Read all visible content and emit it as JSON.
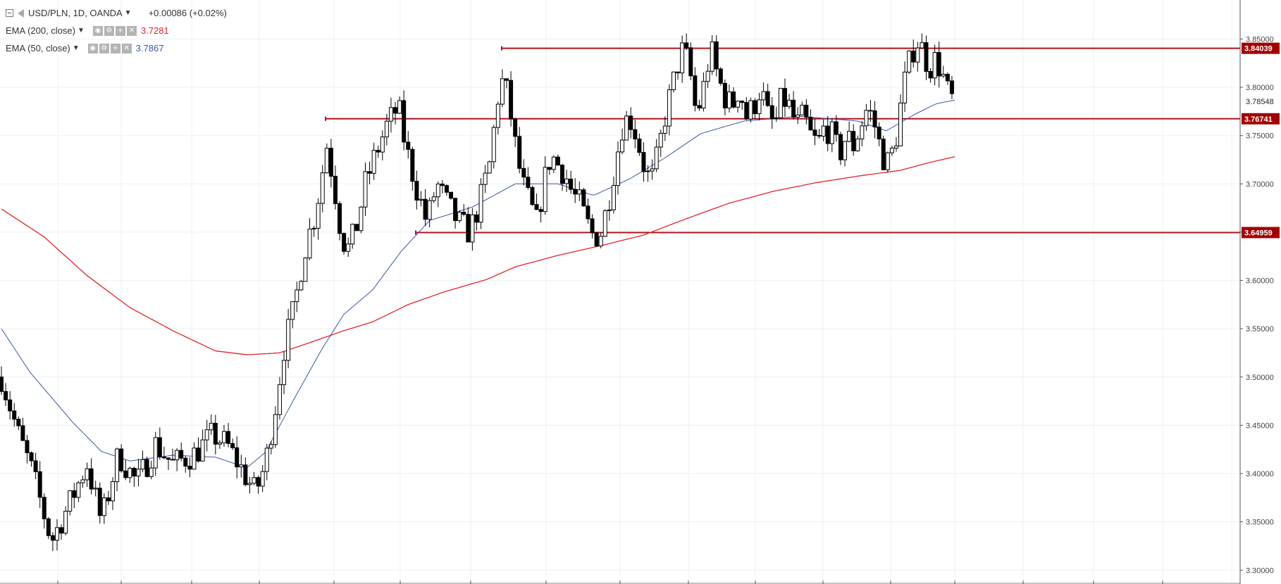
{
  "header": {
    "symbol": "USD/PLN, 1D, OANDA",
    "change": "+0.00086 (+0.02%)",
    "collapse_icon": "minus-square-icon",
    "symbol_icon": "flag-icon"
  },
  "indicators": [
    {
      "name": "EMA (200, close)",
      "value": "3.7281",
      "color": "#e3242b",
      "icons": [
        "eye-icon",
        "gear-icon",
        "plus-icon",
        "close-icon"
      ]
    },
    {
      "name": "EMA (50, close)",
      "value": "3.7867",
      "color": "#3c58a6",
      "icons": [
        "eye-icon",
        "gear-icon",
        "plus-icon",
        "close-icon"
      ]
    }
  ],
  "price_axis": {
    "ticks": [
      "3.85000",
      "3.80000",
      "3.75000",
      "3.70000",
      "3.65000",
      "3.60000",
      "3.55000",
      "3.50000",
      "3.45000",
      "3.40000",
      "3.35000",
      "3.30000"
    ],
    "current_price_label": "3.78548",
    "level_labels": [
      "3.84039",
      "3.76741",
      "3.64959"
    ]
  },
  "chart_data": {
    "type": "candlestick",
    "title": "USD/PLN, 1D, OANDA",
    "ylim": [
      3.29,
      3.87
    ],
    "grid": true,
    "colors": {
      "candle": "#000000",
      "ema200": "#e3242b",
      "ema50": "#3c58a6",
      "levels": "#b3131b",
      "level_label_bg": "#a30000"
    },
    "horizontal_levels": [
      {
        "value": 3.84039,
        "label": "3.84039"
      },
      {
        "value": 3.76741,
        "label": "3.76741"
      },
      {
        "value": 3.64959,
        "label": "3.64959"
      }
    ],
    "last_price": 3.78548,
    "close_path": [
      [
        0,
        3.5
      ],
      [
        12,
        3.44
      ],
      [
        22,
        3.4
      ],
      [
        35,
        3.33
      ],
      [
        48,
        3.37
      ],
      [
        60,
        3.41
      ],
      [
        70,
        3.35
      ],
      [
        82,
        3.42
      ],
      [
        95,
        3.39
      ],
      [
        108,
        3.43
      ],
      [
        120,
        3.41
      ],
      [
        135,
        3.42
      ],
      [
        148,
        3.44
      ],
      [
        158,
        3.43
      ],
      [
        170,
        3.4
      ],
      [
        178,
        3.38
      ],
      [
        185,
        3.41
      ],
      [
        192,
        3.47
      ],
      [
        198,
        3.53
      ],
      [
        205,
        3.57
      ],
      [
        212,
        3.63
      ],
      [
        220,
        3.67
      ],
      [
        228,
        3.74
      ],
      [
        233,
        3.7
      ],
      [
        238,
        3.65
      ],
      [
        242,
        3.63
      ],
      [
        248,
        3.65
      ],
      [
        255,
        3.7
      ],
      [
        262,
        3.73
      ],
      [
        270,
        3.76
      ],
      [
        278,
        3.78
      ],
      [
        283,
        3.74
      ],
      [
        290,
        3.7
      ],
      [
        298,
        3.66
      ],
      [
        305,
        3.7
      ],
      [
        312,
        3.68
      ],
      [
        320,
        3.66
      ],
      [
        328,
        3.65
      ],
      [
        335,
        3.68
      ],
      [
        342,
        3.72
      ],
      [
        348,
        3.79
      ],
      [
        352,
        3.81
      ],
      [
        356,
        3.78
      ],
      [
        360,
        3.74
      ],
      [
        365,
        3.7
      ],
      [
        370,
        3.68
      ],
      [
        375,
        3.66
      ],
      [
        380,
        3.7
      ],
      [
        385,
        3.73
      ],
      [
        390,
        3.72
      ],
      [
        395,
        3.71
      ],
      [
        400,
        3.69
      ],
      [
        405,
        3.68
      ],
      [
        410,
        3.66
      ],
      [
        415,
        3.645
      ],
      [
        420,
        3.65
      ],
      [
        425,
        3.68
      ],
      [
        430,
        3.72
      ],
      [
        435,
        3.76
      ],
      [
        440,
        3.77
      ],
      [
        445,
        3.75
      ],
      [
        450,
        3.72
      ],
      [
        455,
        3.7
      ],
      [
        460,
        3.73
      ],
      [
        465,
        3.77
      ],
      [
        470,
        3.8
      ],
      [
        475,
        3.83
      ],
      [
        478,
        3.84
      ],
      [
        482,
        3.82
      ],
      [
        487,
        3.77
      ],
      [
        492,
        3.8
      ],
      [
        497,
        3.84
      ],
      [
        502,
        3.81
      ],
      [
        507,
        3.79
      ],
      [
        512,
        3.78
      ],
      [
        517,
        3.8
      ],
      [
        522,
        3.77
      ],
      [
        527,
        3.78
      ],
      [
        532,
        3.8
      ],
      [
        537,
        3.77
      ],
      [
        542,
        3.76
      ],
      [
        547,
        3.79
      ],
      [
        552,
        3.78
      ],
      [
        557,
        3.76
      ],
      [
        562,
        3.77
      ],
      [
        567,
        3.75
      ],
      [
        572,
        3.74
      ],
      [
        577,
        3.76
      ],
      [
        582,
        3.75
      ],
      [
        587,
        3.73
      ],
      [
        592,
        3.75
      ],
      [
        597,
        3.74
      ],
      [
        602,
        3.76
      ],
      [
        607,
        3.78
      ],
      [
        612,
        3.76
      ],
      [
        617,
        3.73
      ],
      [
        622,
        3.72
      ],
      [
        627,
        3.75
      ],
      [
        632,
        3.8
      ],
      [
        637,
        3.83
      ],
      [
        641,
        3.85
      ],
      [
        645,
        3.84
      ],
      [
        650,
        3.82
      ],
      [
        655,
        3.83
      ],
      [
        660,
        3.81
      ],
      [
        664,
        3.79
      ],
      [
        668,
        3.785
      ]
    ],
    "ema200_path": [
      [
        0,
        3.674
      ],
      [
        30,
        3.645
      ],
      [
        60,
        3.605
      ],
      [
        90,
        3.572
      ],
      [
        120,
        3.548
      ],
      [
        150,
        3.527
      ],
      [
        172,
        3.523
      ],
      [
        195,
        3.525
      ],
      [
        215,
        3.535
      ],
      [
        240,
        3.548
      ],
      [
        260,
        3.557
      ],
      [
        285,
        3.575
      ],
      [
        310,
        3.588
      ],
      [
        340,
        3.601
      ],
      [
        360,
        3.614
      ],
      [
        390,
        3.626
      ],
      [
        420,
        3.636
      ],
      [
        450,
        3.647
      ],
      [
        480,
        3.664
      ],
      [
        510,
        3.68
      ],
      [
        540,
        3.692
      ],
      [
        570,
        3.701
      ],
      [
        600,
        3.708
      ],
      [
        630,
        3.714
      ],
      [
        650,
        3.722
      ],
      [
        668,
        3.7281
      ]
    ],
    "ema50_path": [
      [
        0,
        3.55
      ],
      [
        20,
        3.505
      ],
      [
        50,
        3.453
      ],
      [
        70,
        3.423
      ],
      [
        90,
        3.413
      ],
      [
        120,
        3.419
      ],
      [
        150,
        3.417
      ],
      [
        172,
        3.406
      ],
      [
        185,
        3.422
      ],
      [
        205,
        3.477
      ],
      [
        225,
        3.53
      ],
      [
        240,
        3.565
      ],
      [
        260,
        3.59
      ],
      [
        280,
        3.63
      ],
      [
        300,
        3.662
      ],
      [
        330,
        3.676
      ],
      [
        360,
        3.7
      ],
      [
        390,
        3.7
      ],
      [
        415,
        3.688
      ],
      [
        440,
        3.705
      ],
      [
        465,
        3.727
      ],
      [
        490,
        3.752
      ],
      [
        520,
        3.765
      ],
      [
        560,
        3.77
      ],
      [
        600,
        3.765
      ],
      [
        620,
        3.755
      ],
      [
        640,
        3.772
      ],
      [
        655,
        3.783
      ],
      [
        668,
        3.7867
      ]
    ]
  }
}
